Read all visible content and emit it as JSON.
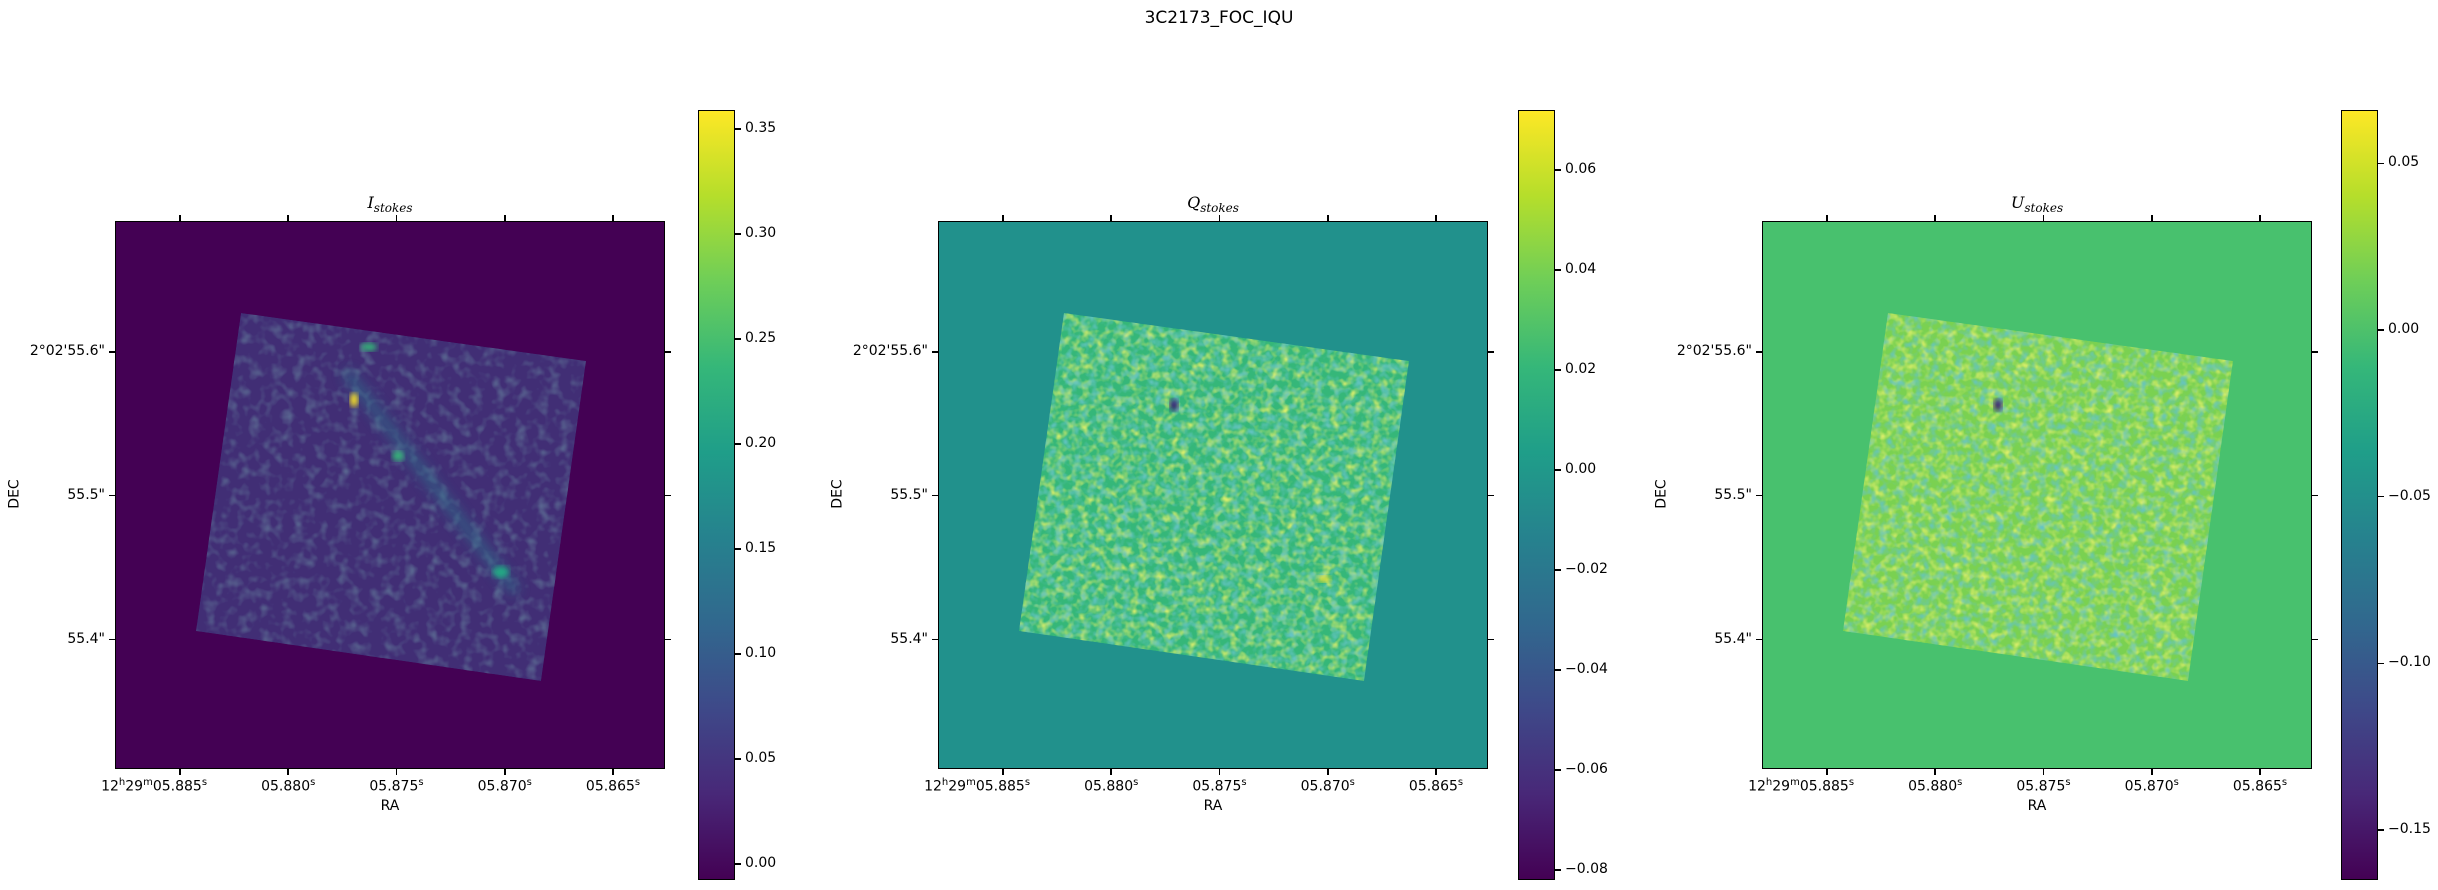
{
  "figure_title": "3C2173_FOC_IQU",
  "chart_data": [
    {
      "type": "heatmap",
      "title": {
        "base": "I",
        "sub": "stokes"
      },
      "xlabel": "RA",
      "ylabel": "DEC",
      "colormap": "viridis",
      "xlim_ra_seconds": [
        5.888,
        5.8626
      ],
      "ylim_dec_arcsec": [
        55.31,
        55.691
      ],
      "clim": [
        -0.0075,
        0.359
      ],
      "background_value": -0.0075,
      "colorbar_ticks": [
        {
          "v": 0.35,
          "label": "0.35"
        },
        {
          "v": 0.3,
          "label": "0.30"
        },
        {
          "v": 0.25,
          "label": "0.25"
        },
        {
          "v": 0.2,
          "label": "0.20"
        },
        {
          "v": 0.15,
          "label": "0.15"
        },
        {
          "v": 0.1,
          "label": "0.10"
        },
        {
          "v": 0.05,
          "label": "0.05"
        },
        {
          "v": 0.0,
          "label": "0.00"
        }
      ],
      "background_color": "#440154",
      "field_color": "#3f4788"
    },
    {
      "type": "heatmap",
      "title": {
        "base": "Q",
        "sub": "stokes"
      },
      "xlabel": "RA",
      "ylabel": "DEC",
      "colormap": "viridis",
      "xlim_ra_seconds": [
        5.888,
        5.8626
      ],
      "ylim_dec_arcsec": [
        55.31,
        55.691
      ],
      "clim": [
        -0.082,
        0.072
      ],
      "background_value": 0.0,
      "colorbar_ticks": [
        {
          "v": 0.06,
          "label": "0.06"
        },
        {
          "v": 0.04,
          "label": "0.04"
        },
        {
          "v": 0.02,
          "label": "0.02"
        },
        {
          "v": 0.0,
          "label": "0.00"
        },
        {
          "v": -0.02,
          "label": "−0.02"
        },
        {
          "v": -0.04,
          "label": "−0.04"
        },
        {
          "v": -0.06,
          "label": "−0.06"
        },
        {
          "v": -0.08,
          "label": "−0.08"
        }
      ],
      "background_color": "#21918c",
      "field_color": "#35b779"
    },
    {
      "type": "heatmap",
      "title": {
        "base": "U",
        "sub": "stokes"
      },
      "xlabel": "RA",
      "ylabel": "DEC",
      "colormap": "viridis",
      "xlim_ra_seconds": [
        5.888,
        5.8626
      ],
      "ylim_dec_arcsec": [
        55.31,
        55.691
      ],
      "clim": [
        -0.165,
        0.066
      ],
      "background_value": 0.0,
      "colorbar_ticks": [
        {
          "v": 0.05,
          "label": "0.05"
        },
        {
          "v": 0.0,
          "label": "0.00"
        },
        {
          "v": -0.05,
          "label": "−0.05"
        },
        {
          "v": -0.1,
          "label": "−0.10"
        },
        {
          "v": -0.15,
          "label": "−0.15"
        }
      ],
      "background_color": "#48c16e",
      "field_color": "#7ad151"
    }
  ],
  "ra_ticks": [
    {
      "v": 5.885,
      "h": "12",
      "m": "29",
      "s": "05.885"
    },
    {
      "v": 5.88,
      "s": "05.880"
    },
    {
      "v": 5.875,
      "s": "05.875"
    },
    {
      "v": 5.87,
      "s": "05.870"
    },
    {
      "v": 5.865,
      "s": "05.865"
    }
  ],
  "dec_ticks": [
    {
      "v": 55.6,
      "label": "2°02'55.6\""
    },
    {
      "v": 55.5,
      "label": "55.5\""
    },
    {
      "v": 55.4,
      "label": "55.4\""
    }
  ],
  "units": {
    "h": "h",
    "m": "m",
    "s": "s"
  }
}
